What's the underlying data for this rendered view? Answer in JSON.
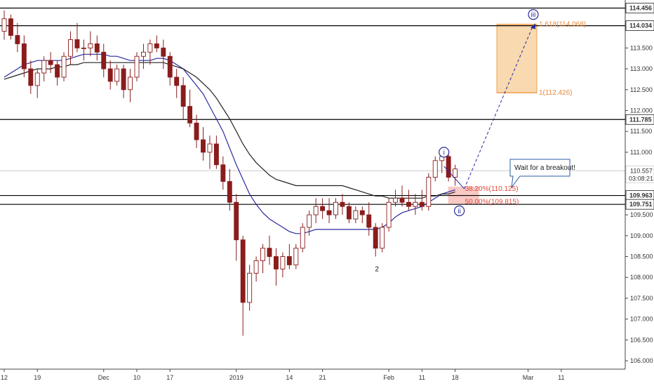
{
  "chart_data": {
    "type": "candlestick",
    "y_range": [
      105.8,
      114.65
    ],
    "price_ticks": [
      "114.500",
      "114.000",
      "113.500",
      "113.000",
      "112.500",
      "112.000",
      "111.500",
      "111.000",
      "110.500",
      "110.000",
      "109.500",
      "109.000",
      "108.500",
      "108.000",
      "107.500",
      "107.000",
      "106.500",
      "106.000"
    ],
    "price_tick_values": [
      114.5,
      114.0,
      113.5,
      113.0,
      112.5,
      112.0,
      111.5,
      111.0,
      110.5,
      110.0,
      109.5,
      109.0,
      108.5,
      108.0,
      107.5,
      107.0,
      106.5,
      106.0
    ],
    "time_ticks": [
      "12",
      "19",
      "Dec",
      "10",
      "17",
      "2019",
      "14",
      "21",
      "Feb",
      "11",
      "18",
      "Mar",
      "11"
    ],
    "time_tick_index": [
      0,
      5,
      15,
      20,
      25,
      35,
      43,
      48,
      58,
      63,
      68,
      79,
      84
    ],
    "level_lines": [
      {
        "price": 114.456,
        "label": "114.456"
      },
      {
        "price": 114.034,
        "label": "114.034"
      },
      {
        "price": 111.785,
        "label": "111.785"
      },
      {
        "price": 109.963,
        "label": "109.963"
      },
      {
        "price": 109.751,
        "label": "109.751"
      }
    ],
    "current_price": {
      "price": 110.557,
      "label": "110.557",
      "countdown": "03:08:21"
    },
    "ohlc_daily": [
      [
        113.9,
        114.4,
        113.7,
        114.2
      ],
      [
        114.2,
        114.3,
        113.7,
        113.8
      ],
      [
        113.8,
        114.1,
        113.4,
        113.6
      ],
      [
        113.6,
        113.8,
        112.8,
        113.0
      ],
      [
        113.0,
        113.2,
        112.4,
        112.6
      ],
      [
        112.6,
        113.0,
        112.3,
        112.9
      ],
      [
        112.9,
        113.3,
        112.7,
        113.2
      ],
      [
        113.2,
        113.4,
        112.9,
        113.1
      ],
      [
        113.1,
        113.2,
        112.6,
        112.8
      ],
      [
        112.8,
        113.4,
        112.7,
        113.3
      ],
      [
        113.3,
        113.9,
        113.1,
        113.7
      ],
      [
        113.7,
        114.1,
        113.4,
        113.5
      ],
      [
        113.5,
        113.7,
        113.2,
        113.5
      ],
      [
        113.5,
        113.9,
        113.3,
        113.6
      ],
      [
        113.6,
        113.8,
        113.2,
        113.4
      ],
      [
        113.4,
        113.6,
        112.8,
        113.0
      ],
      [
        113.0,
        113.2,
        112.5,
        112.7
      ],
      [
        112.7,
        113.1,
        112.6,
        113.0
      ],
      [
        113.0,
        113.1,
        112.3,
        112.5
      ],
      [
        112.5,
        113.0,
        112.2,
        112.8
      ],
      [
        112.8,
        113.4,
        112.7,
        113.3
      ],
      [
        113.3,
        113.6,
        113.0,
        113.4
      ],
      [
        113.4,
        113.7,
        113.1,
        113.6
      ],
      [
        113.6,
        113.8,
        113.4,
        113.5
      ],
      [
        113.5,
        113.7,
        113.0,
        113.3
      ],
      [
        113.3,
        113.4,
        112.6,
        112.8
      ],
      [
        112.8,
        113.0,
        112.3,
        112.6
      ],
      [
        112.6,
        112.8,
        111.8,
        112.1
      ],
      [
        112.1,
        112.5,
        111.6,
        111.7
      ],
      [
        111.7,
        111.9,
        111.1,
        111.3
      ],
      [
        111.3,
        111.6,
        110.8,
        111.0
      ],
      [
        111.0,
        111.4,
        110.6,
        111.2
      ],
      [
        111.2,
        111.4,
        110.6,
        110.7
      ],
      [
        110.7,
        110.9,
        110.1,
        110.3
      ],
      [
        110.3,
        110.6,
        109.6,
        109.8
      ],
      [
        109.8,
        110.0,
        108.4,
        108.9
      ],
      [
        108.9,
        109.0,
        106.6,
        107.4
      ],
      [
        107.4,
        108.3,
        107.2,
        108.1
      ],
      [
        108.1,
        108.5,
        107.9,
        108.4
      ],
      [
        108.4,
        108.8,
        108.1,
        108.7
      ],
      [
        108.7,
        109.0,
        108.3,
        108.5
      ],
      [
        108.5,
        108.7,
        107.8,
        108.2
      ],
      [
        108.2,
        108.6,
        108.0,
        108.5
      ],
      [
        108.5,
        108.8,
        108.2,
        108.3
      ],
      [
        108.3,
        108.8,
        108.2,
        108.7
      ],
      [
        108.7,
        109.3,
        108.6,
        109.2
      ],
      [
        109.2,
        109.6,
        109.0,
        109.5
      ],
      [
        109.5,
        109.9,
        109.3,
        109.7
      ],
      [
        109.7,
        109.9,
        109.4,
        109.6
      ],
      [
        109.6,
        109.9,
        109.3,
        109.5
      ],
      [
        109.5,
        109.9,
        109.4,
        109.8
      ],
      [
        109.8,
        110.0,
        109.5,
        109.7
      ],
      [
        109.7,
        109.8,
        109.3,
        109.4
      ],
      [
        109.4,
        109.7,
        109.3,
        109.6
      ],
      [
        109.6,
        109.7,
        109.3,
        109.5
      ],
      [
        109.5,
        109.8,
        109.0,
        109.2
      ],
      [
        109.2,
        109.3,
        108.5,
        108.7
      ],
      [
        108.7,
        109.3,
        108.6,
        109.2
      ],
      [
        109.2,
        109.9,
        109.1,
        109.8
      ],
      [
        109.8,
        110.1,
        109.7,
        109.9
      ],
      [
        109.9,
        110.2,
        109.7,
        109.8
      ],
      [
        109.8,
        110.1,
        109.6,
        109.7
      ],
      [
        109.7,
        110.0,
        109.5,
        109.8
      ],
      [
        109.8,
        110.1,
        109.6,
        109.7
      ],
      [
        109.7,
        110.5,
        109.6,
        110.4
      ],
      [
        110.4,
        110.9,
        110.3,
        110.8
      ],
      [
        110.8,
        111.1,
        110.5,
        110.9
      ],
      [
        110.9,
        111.0,
        110.3,
        110.4
      ],
      [
        110.4,
        110.7,
        110.2,
        110.6
      ]
    ],
    "moving_averages": [
      {
        "name": "MA fast",
        "color": "#2a2aa0",
        "values": [
          112.8,
          112.9,
          113.0,
          113.1,
          113.15,
          113.2,
          113.2,
          113.2,
          113.2,
          113.2,
          113.25,
          113.3,
          113.35,
          113.35,
          113.35,
          113.35,
          113.3,
          113.3,
          113.25,
          113.2,
          113.2,
          113.2,
          113.2,
          113.25,
          113.25,
          113.2,
          113.1,
          113.0,
          112.8,
          112.6,
          112.4,
          112.1,
          111.8,
          111.5,
          111.1,
          110.7,
          110.35,
          110.0,
          109.75,
          109.55,
          109.4,
          109.3,
          109.2,
          109.1,
          109.05,
          109.05,
          109.1,
          109.15,
          109.15,
          109.15,
          109.15,
          109.15,
          109.15,
          109.15,
          109.15,
          109.15,
          109.15,
          109.2,
          109.3,
          109.45,
          109.55,
          109.6,
          109.65,
          109.7,
          109.8,
          109.9,
          110.0,
          110.05,
          110.1
        ]
      },
      {
        "name": "MA slow",
        "color": "#222222",
        "values": [
          112.75,
          112.8,
          112.85,
          112.9,
          112.95,
          113.0,
          113.0,
          113.0,
          113.05,
          113.05,
          113.1,
          113.1,
          113.15,
          113.15,
          113.15,
          113.15,
          113.15,
          113.15,
          113.15,
          113.15,
          113.15,
          113.15,
          113.15,
          113.15,
          113.15,
          113.1,
          113.05,
          113.0,
          112.9,
          112.8,
          112.65,
          112.5,
          112.3,
          112.05,
          111.8,
          111.5,
          111.2,
          110.95,
          110.75,
          110.6,
          110.45,
          110.35,
          110.3,
          110.25,
          110.2,
          110.2,
          110.2,
          110.2,
          110.2,
          110.2,
          110.2,
          110.2,
          110.15,
          110.1,
          110.05,
          110.0,
          109.95,
          109.95,
          109.9,
          109.9,
          109.9,
          109.9,
          109.9,
          109.9,
          109.95,
          109.95,
          110.0,
          110.0,
          110.05
        ]
      }
    ],
    "annotations": {
      "wave_i": "i",
      "wave_ii": "ii",
      "wave_iii": "iii",
      "wave_2": "2",
      "fib_382": "38.20%(110.125)",
      "fib_50": "50.00%(109.815)",
      "target_1": "1(112.426)",
      "target_1618": "1.618(114.068)",
      "callout": "Wait for a breakout!"
    },
    "colors": {
      "bull": "#8a1c1c",
      "bear": "#8a1c1c",
      "fib_zone": "#f5b7b1",
      "target_zone": "#f8d9b0",
      "target_border": "#f0a050",
      "wave_circle": "#2a2aa0",
      "fib_text": "#e04a3a",
      "target_text": "#e8893a"
    }
  }
}
